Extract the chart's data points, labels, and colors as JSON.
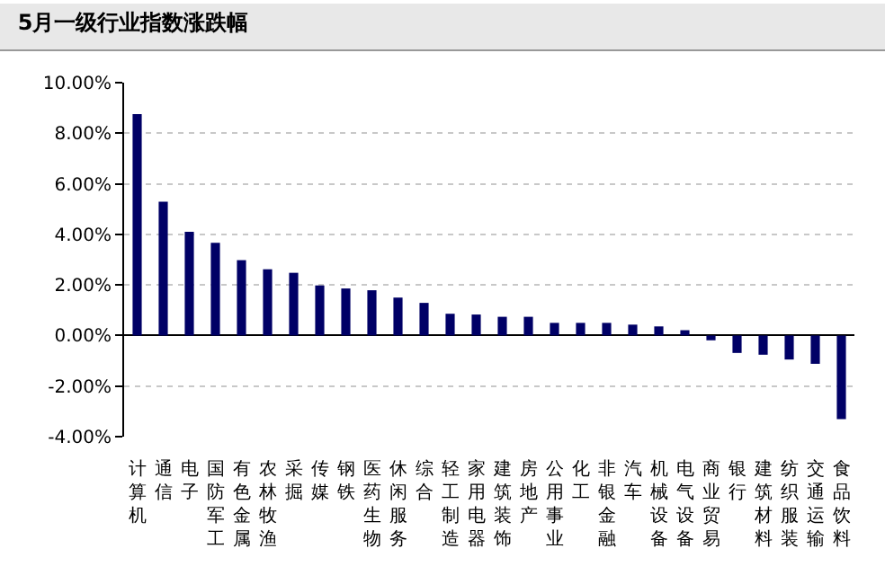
{
  "chart_data": {
    "type": "bar",
    "title": "5月一级行业指数涨跌幅",
    "categories": [
      "计算机",
      "通信",
      "电子",
      "国防军工",
      "有色金属",
      "农林牧渔",
      "采掘",
      "传媒",
      "钢铁",
      "医药生物",
      "休闲服务",
      "综合",
      "轻工制造",
      "家用电器",
      "建筑装饰",
      "房地产",
      "公用事业",
      "化工",
      "非银金融",
      "汽车",
      "机械设备",
      "电气设备",
      "商业贸易",
      "银行",
      "建筑材料",
      "纺织服装",
      "交通运输",
      "食品饮料"
    ],
    "values": [
      8.76,
      5.29,
      4.1,
      3.67,
      2.98,
      2.62,
      2.48,
      1.98,
      1.86,
      1.79,
      1.5,
      1.29,
      0.86,
      0.83,
      0.74,
      0.74,
      0.5,
      0.5,
      0.5,
      0.43,
      0.36,
      0.21,
      -0.19,
      -0.69,
      -0.76,
      -0.95,
      -1.12,
      -3.31
    ],
    "color": "#000066",
    "ylim": [
      -4,
      10
    ],
    "yticks": [
      {
        "value": -4,
        "label": "-4.00%"
      },
      {
        "value": -2,
        "label": "-2.00%"
      },
      {
        "value": 0,
        "label": "0.00%"
      },
      {
        "value": 2,
        "label": "2.00%"
      },
      {
        "value": 4,
        "label": "4.00%"
      },
      {
        "value": 6,
        "label": "6.00%"
      },
      {
        "value": 8,
        "label": "8.00%"
      },
      {
        "value": 10,
        "label": "10.00%"
      }
    ],
    "grid": "y"
  }
}
